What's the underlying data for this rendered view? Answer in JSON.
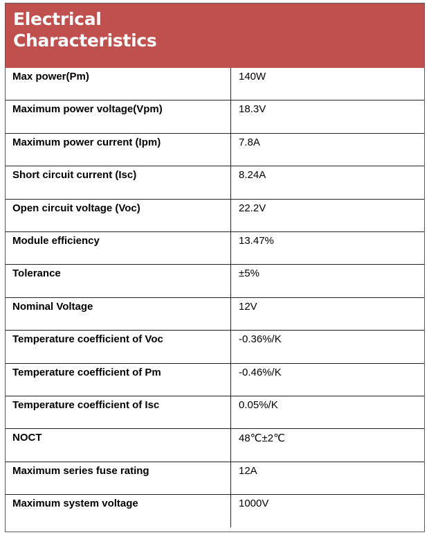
{
  "header": {
    "title_line1": "Electrical",
    "title_line2": "Characteristics"
  },
  "rows": [
    {
      "label": "Max power(Pm)",
      "value": "140W"
    },
    {
      "label": "Maximum power voltage(Vpm)",
      "value": "18.3V"
    },
    {
      "label": "Maximum power current (Ipm)",
      "value": "7.8A"
    },
    {
      "label": "Short circuit current (Isc)",
      "value": "8.24A"
    },
    {
      "label": "Open circuit voltage (Voc)",
      "value": "22.2V"
    },
    {
      "label": "Module efficiency",
      "value": "13.47%"
    },
    {
      "label": "Tolerance",
      "value": "±5%"
    },
    {
      "label": "Nominal Voltage",
      "value": "12V"
    },
    {
      "label": "Temperature coefficient of Voc",
      "value": "-0.36%/K"
    },
    {
      "label": "Temperature coefficient of Pm",
      "value": "-0.46%/K"
    },
    {
      "label": "Temperature coefficient of Isc",
      "value": "0.05%/K"
    },
    {
      "label": "NOCT",
      "value": "48℃±2℃"
    },
    {
      "label": "Maximum series fuse rating",
      "value": "12A"
    },
    {
      "label": "Maximum system voltage",
      "value": "1000V"
    }
  ],
  "colors": {
    "header_background": "#c0504d",
    "header_text": "#ffffff",
    "grid_lines": "#222222"
  }
}
